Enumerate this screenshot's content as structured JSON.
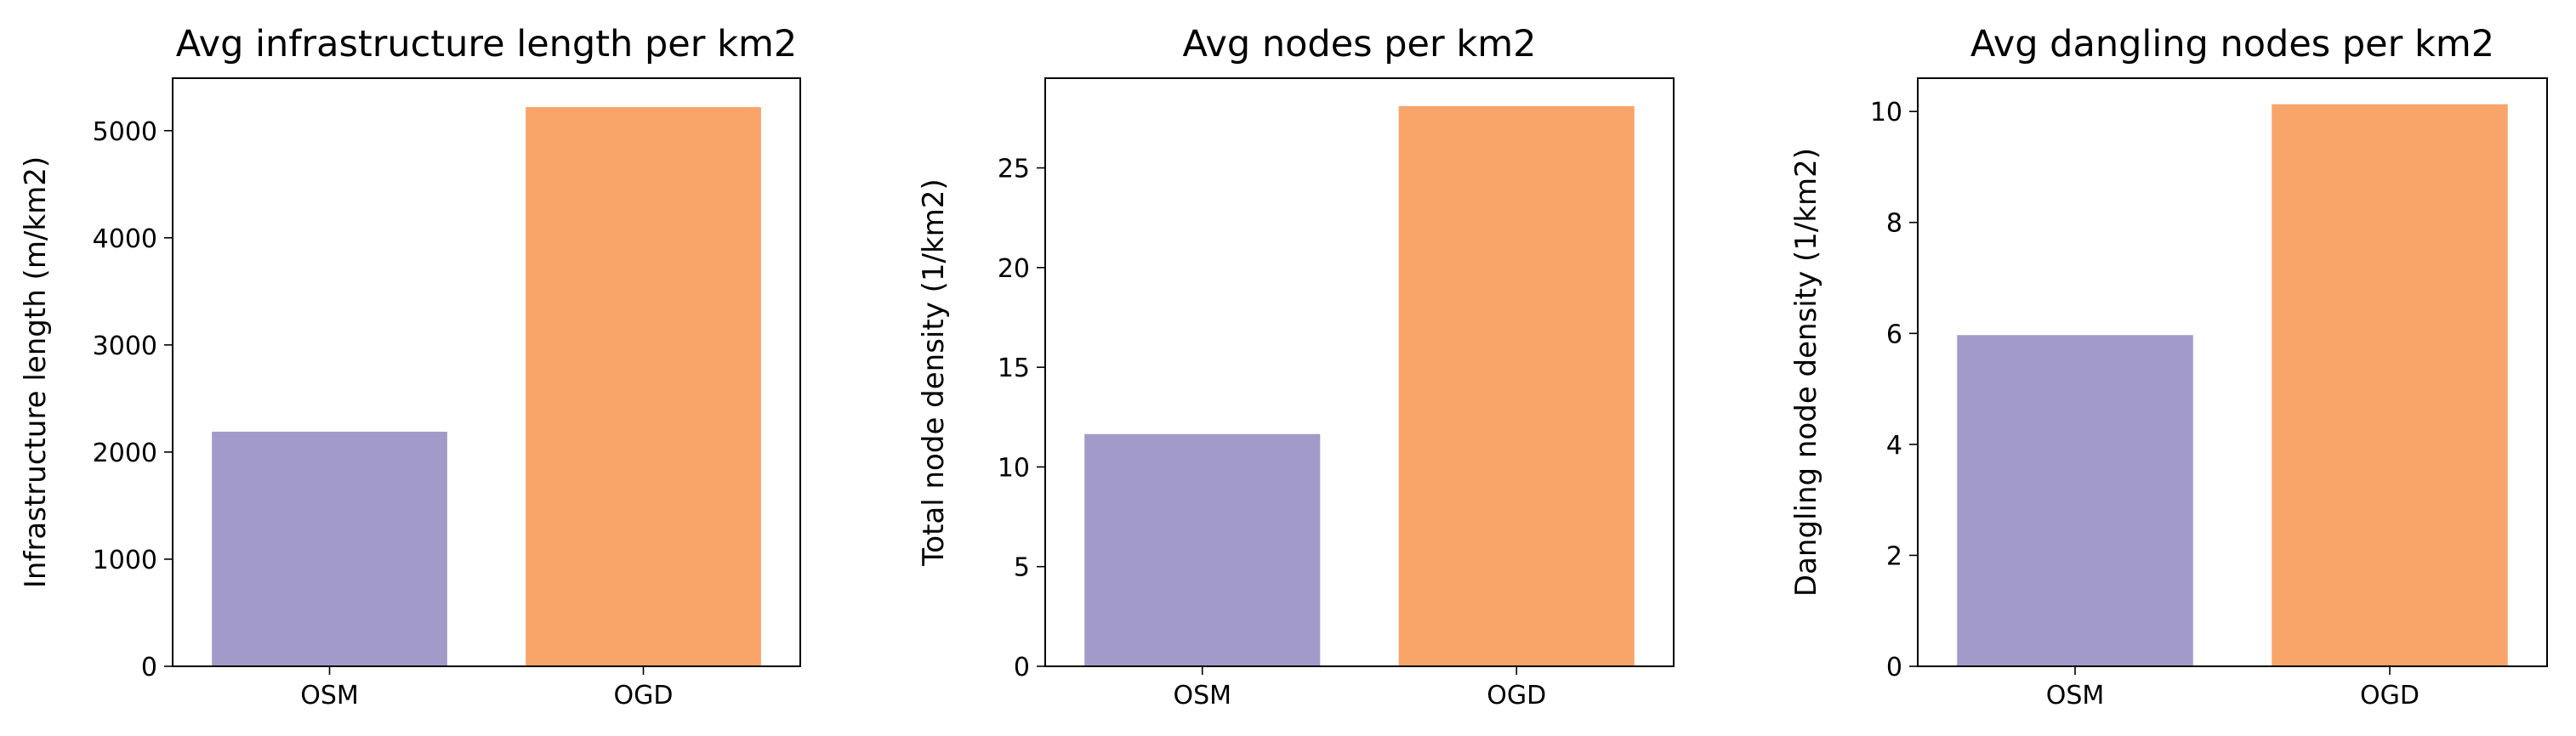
{
  "chart_data": [
    {
      "type": "bar",
      "title": "Avg infrastructure length per km2",
      "xlabel": "",
      "ylabel": "Infrastructure length (m/km2)",
      "categories": [
        "OSM",
        "OGD"
      ],
      "values": [
        2190,
        5220
      ],
      "ylim": [
        0,
        5490
      ],
      "yticks": [
        0,
        1000,
        2000,
        3000,
        4000,
        5000
      ],
      "colors": [
        "#a29bc9",
        "#f9a469"
      ],
      "grid": false
    },
    {
      "type": "bar",
      "title": "Avg nodes per km2",
      "xlabel": "",
      "ylabel": "Total node density (1/km2)",
      "categories": [
        "OSM",
        "OGD"
      ],
      "values": [
        11.65,
        28.1
      ],
      "ylim": [
        0,
        29.5
      ],
      "yticks": [
        0,
        5,
        10,
        15,
        20,
        25
      ],
      "colors": [
        "#a29bc9",
        "#f9a469"
      ],
      "grid": false
    },
    {
      "type": "bar",
      "title": "Avg dangling nodes per km2",
      "xlabel": "",
      "ylabel": "Dangling node density (1/km2)",
      "categories": [
        "OSM",
        "OGD"
      ],
      "values": [
        5.97,
        10.13
      ],
      "ylim": [
        0,
        10.6
      ],
      "yticks": [
        0,
        2,
        4,
        6,
        8,
        10
      ],
      "colors": [
        "#a29bc9",
        "#f9a469"
      ],
      "grid": false
    }
  ]
}
